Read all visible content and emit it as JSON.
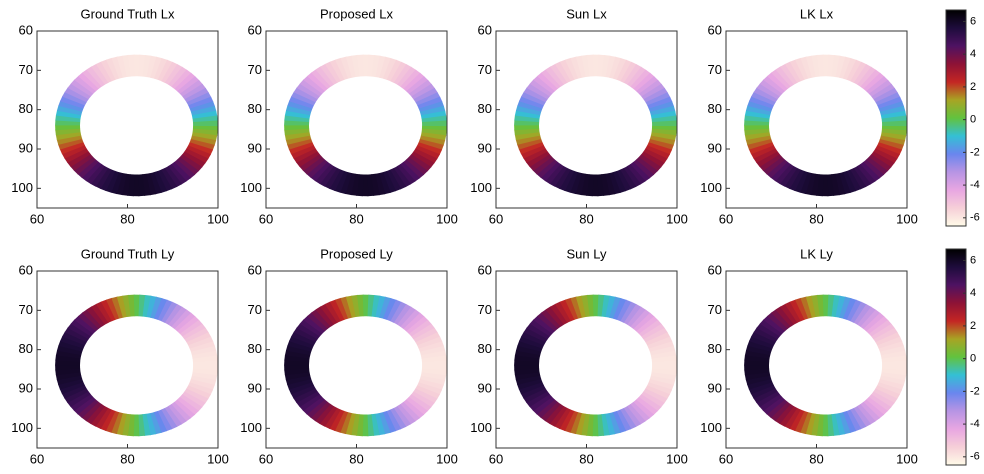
{
  "chart_data": [
    {
      "type": "heatmap",
      "title": "Ground Truth Lx",
      "xlim": [
        60,
        100
      ],
      "ylim": [
        60,
        105
      ],
      "xticks": [
        60,
        80,
        100
      ],
      "yticks": [
        60,
        70,
        80,
        90,
        100
      ]
    },
    {
      "type": "heatmap",
      "title": "Proposed Lx",
      "xlim": [
        60,
        100
      ],
      "ylim": [
        60,
        105
      ],
      "xticks": [
        60,
        80,
        100
      ],
      "yticks": [
        60,
        70,
        80,
        90,
        100
      ]
    },
    {
      "type": "heatmap",
      "title": "Sun Lx",
      "xlim": [
        60,
        100
      ],
      "ylim": [
        60,
        105
      ],
      "xticks": [
        60,
        80,
        100
      ],
      "yticks": [
        60,
        70,
        80,
        90,
        100
      ]
    },
    {
      "type": "heatmap",
      "title": "LK Lx",
      "xlim": [
        60,
        100
      ],
      "ylim": [
        60,
        105
      ],
      "xticks": [
        60,
        80,
        100
      ],
      "yticks": [
        60,
        70,
        80,
        90,
        100
      ]
    },
    {
      "type": "heatmap",
      "title": "Ground Truth Ly",
      "xlim": [
        60,
        100
      ],
      "ylim": [
        60,
        105
      ],
      "xticks": [
        60,
        80,
        100
      ],
      "yticks": [
        60,
        70,
        80,
        90,
        100
      ]
    },
    {
      "type": "heatmap",
      "title": "Proposed Ly",
      "xlim": [
        60,
        100
      ],
      "ylim": [
        60,
        105
      ],
      "xticks": [
        60,
        80,
        100
      ],
      "yticks": [
        60,
        70,
        80,
        90,
        100
      ]
    },
    {
      "type": "heatmap",
      "title": "Sun Ly",
      "xlim": [
        60,
        100
      ],
      "ylim": [
        60,
        105
      ],
      "xticks": [
        60,
        80,
        100
      ],
      "yticks": [
        60,
        70,
        80,
        90,
        100
      ]
    },
    {
      "type": "heatmap",
      "title": "LK Ly",
      "xlim": [
        60,
        100
      ],
      "ylim": [
        60,
        105
      ],
      "xticks": [
        60,
        80,
        100
      ],
      "yticks": [
        60,
        70,
        80,
        90,
        100
      ]
    },
    {
      "type": "colorbar",
      "ylim": [
        -6.5,
        6.7
      ],
      "yticks": [
        6,
        4,
        2,
        0,
        -2,
        -4,
        -6
      ],
      "colormap": [
        "#fffbe8",
        "#f6cfd8",
        "#e8a6e2",
        "#b794e4",
        "#6a86ee",
        "#34c0d4",
        "#62c23e",
        "#a8a424",
        "#c42624",
        "#8e1236",
        "#4e1262",
        "#1e0c3c",
        "#000000"
      ]
    },
    {
      "type": "colorbar",
      "ylim": [
        -6.5,
        6.7
      ],
      "yticks": [
        6,
        4,
        2,
        0,
        -2,
        -4,
        -6
      ],
      "colormap": [
        "#fffbe8",
        "#f6cfd8",
        "#e8a6e2",
        "#b794e4",
        "#6a86ee",
        "#34c0d4",
        "#62c23e",
        "#a8a424",
        "#c42624",
        "#8e1236",
        "#4e1262",
        "#1e0c3c",
        "#000000"
      ]
    }
  ]
}
